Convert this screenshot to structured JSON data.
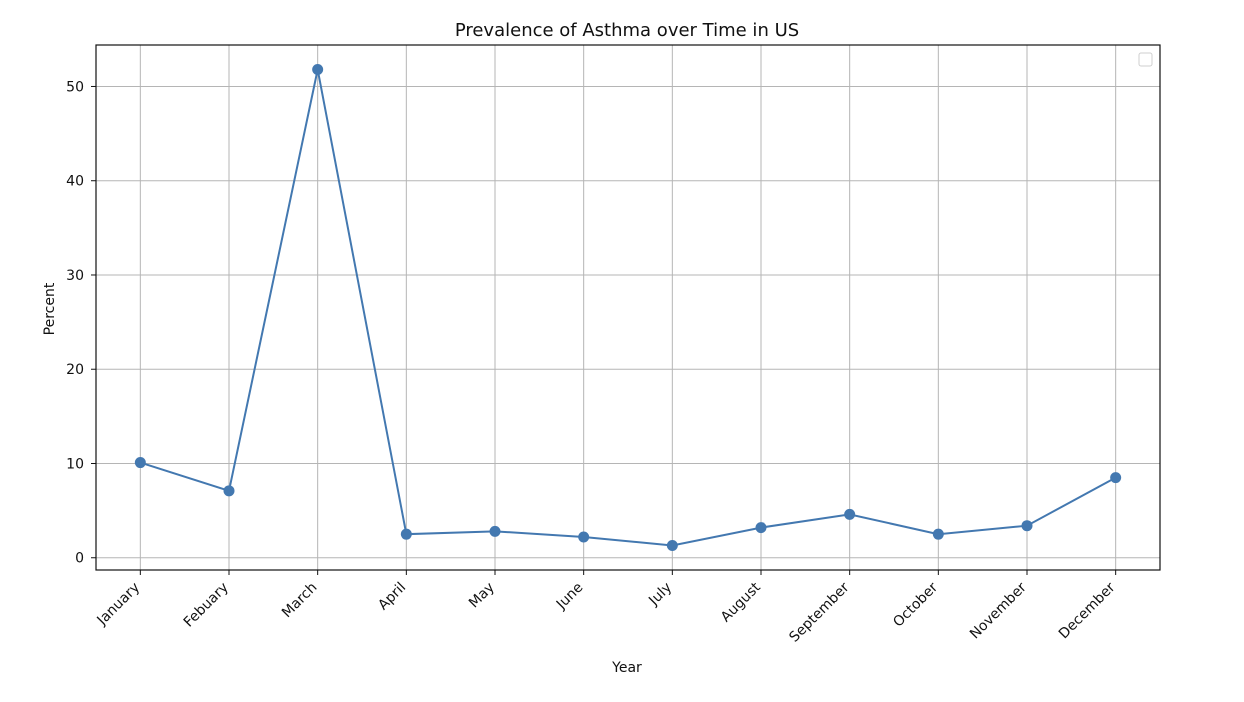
{
  "chart_data": {
    "type": "line",
    "title": "Prevalence of Asthma over Time in US",
    "xlabel": "Year",
    "ylabel": "Percent",
    "categories": [
      "January",
      "Febuary",
      "March",
      "April",
      "May",
      "June",
      "July",
      "August",
      "September",
      "October",
      "November",
      "December"
    ],
    "series": [
      {
        "values": [
          10.1,
          7.1,
          51.8,
          2.5,
          2.8,
          2.2,
          1.3,
          3.2,
          4.6,
          2.5,
          3.4,
          8.5
        ],
        "color": "#4378b0"
      }
    ],
    "ylim": [
      -1.3,
      54.4
    ],
    "yticks": [
      0,
      10,
      20,
      30,
      40,
      50
    ],
    "grid": true,
    "legend": {
      "placement": "top-right",
      "entries": []
    }
  }
}
